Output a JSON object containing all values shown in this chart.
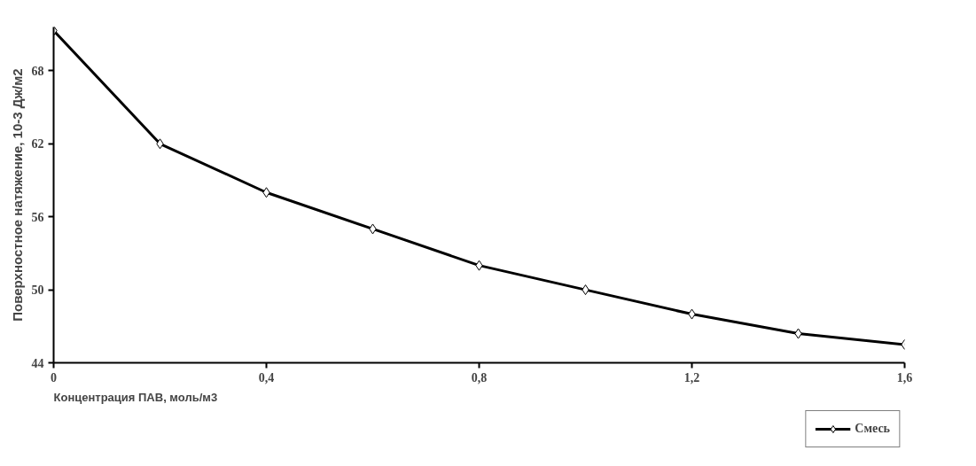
{
  "chart_data": {
    "type": "line",
    "ylabel": "Поверхностное натяжение, 10-3 Дж/м2",
    "xlabel": "Концентрация ПАВ, моль/м3",
    "x": [
      0,
      0.2,
      0.4,
      0.6,
      0.8,
      1.0,
      1.2,
      1.4,
      1.6
    ],
    "series": [
      {
        "name": "Смесь",
        "color": "#000000",
        "values": [
          71.3,
          62,
          58,
          55,
          52,
          50,
          48,
          46.4,
          45.5
        ]
      }
    ],
    "xlim": [
      0,
      1.6
    ],
    "ylim": [
      44,
      71.6
    ],
    "xticks": [
      0,
      {
        "value": 0.4,
        "label": "0,4"
      },
      {
        "value": 0.8,
        "label": "0,8"
      },
      {
        "value": 1.2,
        "label": "1,2"
      },
      {
        "value": 1.6,
        "label": "1,6"
      }
    ],
    "yticks": [
      44,
      50,
      56,
      62,
      68
    ],
    "marker": "diamond",
    "line_style": "solid",
    "legend": "bottom right",
    "grid": false
  }
}
